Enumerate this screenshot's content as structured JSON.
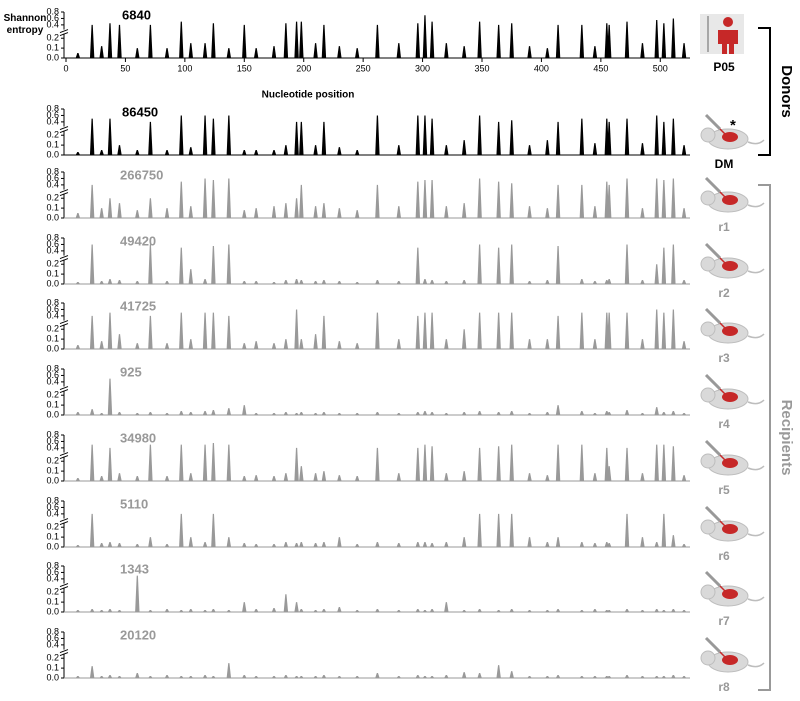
{
  "groups": [
    {
      "label": "Donors",
      "color": "#000000"
    },
    {
      "label": "Recipients",
      "color": "#999999"
    }
  ],
  "chart_data": [
    {
      "type": "bar",
      "annotation": "6840",
      "label": "P05",
      "color": "#000000",
      "ylabel": "Shannon entropy",
      "xlabel": "Nucleotide position",
      "xlim": [
        0,
        525
      ],
      "xticks": [
        0,
        50,
        100,
        150,
        200,
        250,
        300,
        350,
        400,
        450,
        500
      ],
      "ylim": [
        0,
        0.8
      ],
      "ybreak": [
        0.2,
        0.4
      ],
      "yticks": [
        {
          "value": 0,
          "label": "0.0"
        },
        0.1,
        0.2,
        0.4,
        0.6,
        0.8
      ],
      "x": [
        10,
        22,
        30,
        37,
        45,
        60,
        71,
        85,
        97,
        105,
        117,
        124,
        137,
        150,
        160,
        175,
        185,
        194,
        198,
        210,
        217,
        230,
        245,
        262,
        280,
        296,
        302,
        308,
        320,
        335,
        348,
        364,
        375,
        390,
        405,
        414,
        434,
        445,
        455,
        457,
        472,
        485,
        497,
        503,
        511,
        520
      ],
      "values": [
        0.05,
        0.4,
        0.12,
        0.45,
        0.4,
        0.1,
        0.4,
        0.1,
        0.5,
        0.15,
        0.15,
        0.45,
        0.1,
        0.4,
        0.1,
        0.12,
        0.45,
        0.5,
        0.5,
        0.15,
        0.4,
        0.12,
        0.1,
        0.4,
        0.15,
        0.45,
        0.7,
        0.5,
        0.15,
        0.12,
        0.5,
        0.4,
        0.45,
        0.12,
        0.1,
        0.4,
        0.4,
        0.12,
        0.45,
        0.4,
        0.5,
        0.15,
        0.55,
        0.45,
        0.6,
        0.15
      ]
    },
    {
      "type": "bar",
      "annotation": "86450",
      "label": "DM",
      "marker": "*",
      "color": "#000000",
      "xlim": [
        0,
        525
      ],
      "ylim": [
        0,
        0.8
      ],
      "ybreak": [
        0.2,
        0.4
      ],
      "yticks": [
        {
          "value": 0,
          "label": "0.0"
        },
        0.1,
        0.2,
        0.4,
        0.6,
        0.8
      ],
      "x": [
        10,
        22,
        30,
        37,
        45,
        60,
        71,
        85,
        97,
        105,
        117,
        124,
        137,
        150,
        160,
        175,
        185,
        194,
        198,
        210,
        217,
        230,
        245,
        262,
        280,
        296,
        302,
        308,
        320,
        335,
        348,
        364,
        375,
        390,
        405,
        414,
        434,
        445,
        455,
        457,
        472,
        485,
        497,
        503,
        511,
        520
      ],
      "values": [
        0.03,
        0.5,
        0.05,
        0.5,
        0.1,
        0.05,
        0.4,
        0.05,
        0.6,
        0.08,
        0.6,
        0.5,
        0.6,
        0.05,
        0.05,
        0.05,
        0.1,
        0.4,
        0.4,
        0.1,
        0.4,
        0.08,
        0.05,
        0.6,
        0.1,
        0.6,
        0.6,
        0.5,
        0.1,
        0.15,
        0.6,
        0.4,
        0.45,
        0.1,
        0.15,
        0.4,
        0.5,
        0.12,
        0.5,
        0.4,
        0.5,
        0.12,
        0.6,
        0.4,
        0.5,
        0.1
      ]
    },
    {
      "type": "bar",
      "annotation": "266750",
      "label": "r1",
      "color": "#999999",
      "xlim": [
        0,
        525
      ],
      "ylim": [
        0,
        0.8
      ],
      "ybreak": [
        0.2,
        0.4
      ],
      "yticks": [
        {
          "value": 0,
          "label": "0.0"
        },
        0.1,
        0.2,
        0.4,
        0.6,
        0.8
      ],
      "x": [
        10,
        22,
        30,
        37,
        45,
        60,
        71,
        85,
        97,
        105,
        117,
        124,
        137,
        150,
        160,
        175,
        185,
        194,
        198,
        210,
        217,
        230,
        245,
        262,
        280,
        296,
        302,
        308,
        320,
        335,
        348,
        364,
        375,
        390,
        405,
        414,
        434,
        445,
        455,
        457,
        472,
        485,
        497,
        503,
        511,
        520
      ],
      "values": [
        0.05,
        0.4,
        0.1,
        0.2,
        0.15,
        0.08,
        0.2,
        0.1,
        0.5,
        0.12,
        0.6,
        0.55,
        0.6,
        0.08,
        0.1,
        0.12,
        0.15,
        0.2,
        0.4,
        0.12,
        0.15,
        0.1,
        0.08,
        0.4,
        0.12,
        0.5,
        0.55,
        0.55,
        0.12,
        0.15,
        0.6,
        0.5,
        0.45,
        0.12,
        0.1,
        0.4,
        0.4,
        0.12,
        0.5,
        0.4,
        0.6,
        0.1,
        0.6,
        0.55,
        0.6,
        0.1
      ]
    },
    {
      "type": "bar",
      "annotation": "49420",
      "label": "r2",
      "color": "#999999",
      "xlim": [
        0,
        525
      ],
      "ylim": [
        0,
        0.8
      ],
      "ybreak": [
        0.2,
        0.4
      ],
      "yticks": [
        {
          "value": 0,
          "label": "0.0"
        },
        0.1,
        0.2,
        0.4,
        0.6,
        0.8
      ],
      "x": [
        10,
        22,
        30,
        37,
        45,
        60,
        71,
        85,
        97,
        105,
        117,
        124,
        137,
        150,
        160,
        175,
        185,
        194,
        198,
        210,
        217,
        230,
        245,
        262,
        280,
        296,
        302,
        308,
        320,
        335,
        348,
        364,
        375,
        390,
        405,
        414,
        434,
        445,
        455,
        457,
        472,
        485,
        497,
        503,
        511,
        520
      ],
      "values": [
        0.02,
        0.6,
        0.03,
        0.05,
        0.04,
        0.03,
        0.6,
        0.03,
        0.5,
        0.15,
        0.05,
        0.55,
        0.6,
        0.03,
        0.03,
        0.02,
        0.04,
        0.05,
        0.04,
        0.03,
        0.04,
        0.03,
        0.02,
        0.04,
        0.03,
        0.5,
        0.05,
        0.04,
        0.03,
        0.04,
        0.6,
        0.5,
        0.6,
        0.03,
        0.04,
        0.55,
        0.05,
        0.03,
        0.04,
        0.05,
        0.6,
        0.04,
        0.2,
        0.5,
        0.6,
        0.04
      ]
    },
    {
      "type": "bar",
      "annotation": "41725",
      "label": "r3",
      "color": "#999999",
      "xlim": [
        0,
        525
      ],
      "ylim": [
        0,
        0.8
      ],
      "ybreak": [
        0.2,
        0.4
      ],
      "yticks": [
        {
          "value": 0,
          "label": "0.0"
        },
        0.1,
        0.2,
        0.4,
        0.6,
        0.8
      ],
      "x": [
        10,
        22,
        30,
        37,
        45,
        60,
        71,
        85,
        97,
        105,
        117,
        124,
        137,
        150,
        160,
        175,
        185,
        194,
        198,
        210,
        217,
        230,
        245,
        262,
        280,
        296,
        302,
        308,
        320,
        335,
        348,
        364,
        375,
        390,
        405,
        414,
        434,
        445,
        455,
        457,
        472,
        485,
        497,
        503,
        511,
        520
      ],
      "values": [
        0.04,
        0.4,
        0.08,
        0.5,
        0.15,
        0.06,
        0.4,
        0.06,
        0.5,
        0.1,
        0.5,
        0.5,
        0.4,
        0.06,
        0.08,
        0.06,
        0.1,
        0.6,
        0.1,
        0.15,
        0.4,
        0.08,
        0.06,
        0.5,
        0.1,
        0.4,
        0.5,
        0.5,
        0.1,
        0.2,
        0.5,
        0.5,
        0.5,
        0.1,
        0.1,
        0.4,
        0.5,
        0.1,
        0.5,
        0.5,
        0.5,
        0.1,
        0.6,
        0.5,
        0.6,
        0.08
      ]
    },
    {
      "type": "bar",
      "annotation": "925",
      "label": "r4",
      "color": "#999999",
      "xlim": [
        0,
        525
      ],
      "ylim": [
        0,
        0.8
      ],
      "ybreak": [
        0.2,
        0.4
      ],
      "yticks": [
        {
          "value": 0,
          "label": "0.0"
        },
        0.1,
        0.2,
        0.4,
        0.6,
        0.8
      ],
      "x": [
        10,
        22,
        30,
        37,
        45,
        60,
        71,
        85,
        97,
        105,
        117,
        124,
        137,
        150,
        160,
        175,
        185,
        194,
        198,
        210,
        217,
        230,
        245,
        262,
        280,
        296,
        302,
        308,
        320,
        335,
        348,
        364,
        375,
        390,
        405,
        414,
        434,
        445,
        455,
        457,
        472,
        485,
        497,
        503,
        511,
        520
      ],
      "values": [
        0.03,
        0.06,
        0.02,
        0.5,
        0.03,
        0.02,
        0.03,
        0.02,
        0.04,
        0.03,
        0.04,
        0.05,
        0.07,
        0.1,
        0.02,
        0.02,
        0.03,
        0.02,
        0.03,
        0.02,
        0.03,
        0.02,
        0.02,
        0.03,
        0.02,
        0.03,
        0.04,
        0.03,
        0.02,
        0.03,
        0.04,
        0.03,
        0.04,
        0.02,
        0.03,
        0.1,
        0.04,
        0.02,
        0.04,
        0.03,
        0.05,
        0.02,
        0.08,
        0.03,
        0.04,
        0.02
      ]
    },
    {
      "type": "bar",
      "annotation": "34980",
      "label": "r5",
      "color": "#999999",
      "xlim": [
        0,
        525
      ],
      "ylim": [
        0,
        0.8
      ],
      "ybreak": [
        0.2,
        0.4
      ],
      "yticks": [
        {
          "value": 0,
          "label": "0.0"
        },
        0.1,
        0.2,
        0.4,
        0.6,
        0.8
      ],
      "x": [
        10,
        22,
        30,
        37,
        45,
        60,
        71,
        85,
        97,
        105,
        117,
        124,
        137,
        150,
        160,
        175,
        185,
        194,
        198,
        210,
        217,
        230,
        245,
        262,
        280,
        296,
        302,
        308,
        320,
        335,
        348,
        364,
        375,
        390,
        405,
        414,
        434,
        445,
        455,
        457,
        472,
        485,
        497,
        503,
        511,
        520
      ],
      "values": [
        0.03,
        0.5,
        0.05,
        0.4,
        0.08,
        0.05,
        0.5,
        0.05,
        0.5,
        0.08,
        0.5,
        0.55,
        0.5,
        0.05,
        0.06,
        0.05,
        0.08,
        0.4,
        0.15,
        0.08,
        0.1,
        0.06,
        0.05,
        0.4,
        0.08,
        0.4,
        0.5,
        0.45,
        0.08,
        0.1,
        0.4,
        0.45,
        0.5,
        0.08,
        0.06,
        0.5,
        0.5,
        0.08,
        0.4,
        0.15,
        0.4,
        0.08,
        0.5,
        0.5,
        0.45,
        0.06
      ]
    },
    {
      "type": "bar",
      "annotation": "5110",
      "label": "r6",
      "color": "#999999",
      "xlim": [
        0,
        525
      ],
      "ylim": [
        0,
        0.8
      ],
      "ybreak": [
        0.2,
        0.4
      ],
      "yticks": [
        {
          "value": 0,
          "label": "0.0"
        },
        0.1,
        0.2,
        0.4,
        0.6,
        0.8
      ],
      "x": [
        10,
        22,
        30,
        37,
        45,
        60,
        71,
        85,
        97,
        105,
        117,
        124,
        137,
        150,
        160,
        175,
        185,
        194,
        198,
        210,
        217,
        230,
        245,
        262,
        280,
        296,
        302,
        308,
        320,
        335,
        348,
        364,
        375,
        390,
        405,
        414,
        434,
        445,
        455,
        457,
        472,
        485,
        497,
        503,
        511,
        520
      ],
      "values": [
        0.02,
        0.4,
        0.04,
        0.05,
        0.04,
        0.03,
        0.1,
        0.03,
        0.4,
        0.1,
        0.05,
        0.4,
        0.1,
        0.04,
        0.03,
        0.03,
        0.05,
        0.04,
        0.05,
        0.04,
        0.05,
        0.1,
        0.03,
        0.05,
        0.04,
        0.05,
        0.05,
        0.04,
        0.05,
        0.1,
        0.4,
        0.4,
        0.4,
        0.1,
        0.05,
        0.1,
        0.05,
        0.04,
        0.05,
        0.04,
        0.4,
        0.1,
        0.05,
        0.4,
        0.12,
        0.03
      ]
    },
    {
      "type": "bar",
      "annotation": "1343",
      "label": "r7",
      "color": "#999999",
      "xlim": [
        0,
        525
      ],
      "ylim": [
        0,
        0.8
      ],
      "ybreak": [
        0.2,
        0.4
      ],
      "yticks": [
        {
          "value": 0,
          "label": "0.0"
        },
        0.1,
        0.2,
        0.4,
        0.6,
        0.8
      ],
      "x": [
        10,
        22,
        30,
        37,
        45,
        60,
        71,
        85,
        97,
        105,
        117,
        124,
        137,
        150,
        160,
        175,
        185,
        194,
        198,
        210,
        217,
        230,
        245,
        262,
        280,
        296,
        302,
        308,
        320,
        335,
        348,
        364,
        375,
        390,
        405,
        414,
        434,
        445,
        455,
        457,
        472,
        485,
        497,
        503,
        511,
        520
      ],
      "values": [
        0.02,
        0.03,
        0.02,
        0.03,
        0.02,
        0.5,
        0.02,
        0.03,
        0.02,
        0.03,
        0.02,
        0.03,
        0.02,
        0.1,
        0.03,
        0.04,
        0.18,
        0.1,
        0.03,
        0.02,
        0.03,
        0.05,
        0.02,
        0.03,
        0.02,
        0.03,
        0.02,
        0.03,
        0.1,
        0.02,
        0.03,
        0.02,
        0.03,
        0.02,
        0.02,
        0.03,
        0.02,
        0.03,
        0.02,
        0.02,
        0.03,
        0.02,
        0.03,
        0.02,
        0.03,
        0.02
      ]
    },
    {
      "type": "bar",
      "annotation": "20120",
      "label": "r8",
      "color": "#999999",
      "xlim": [
        0,
        525
      ],
      "ylim": [
        0,
        0.8
      ],
      "ybreak": [
        0.2,
        0.4
      ],
      "yticks": [
        {
          "value": 0,
          "label": "0.0"
        },
        0.1,
        0.2,
        0.4,
        0.6,
        0.8
      ],
      "x": [
        10,
        22,
        30,
        37,
        45,
        60,
        71,
        85,
        97,
        105,
        117,
        124,
        137,
        150,
        160,
        175,
        185,
        194,
        198,
        210,
        217,
        230,
        245,
        262,
        280,
        296,
        302,
        308,
        320,
        335,
        348,
        364,
        375,
        390,
        405,
        414,
        434,
        445,
        455,
        457,
        472,
        485,
        497,
        503,
        511,
        520
      ],
      "values": [
        0.02,
        0.12,
        0.02,
        0.03,
        0.02,
        0.05,
        0.02,
        0.03,
        0.02,
        0.02,
        0.03,
        0.02,
        0.15,
        0.03,
        0.02,
        0.02,
        0.03,
        0.02,
        0.02,
        0.02,
        0.03,
        0.02,
        0.02,
        0.05,
        0.02,
        0.03,
        0.02,
        0.02,
        0.03,
        0.06,
        0.05,
        0.13,
        0.07,
        0.02,
        0.02,
        0.03,
        0.02,
        0.02,
        0.02,
        0.02,
        0.03,
        0.02,
        0.02,
        0.02,
        0.03,
        0.02
      ]
    }
  ]
}
